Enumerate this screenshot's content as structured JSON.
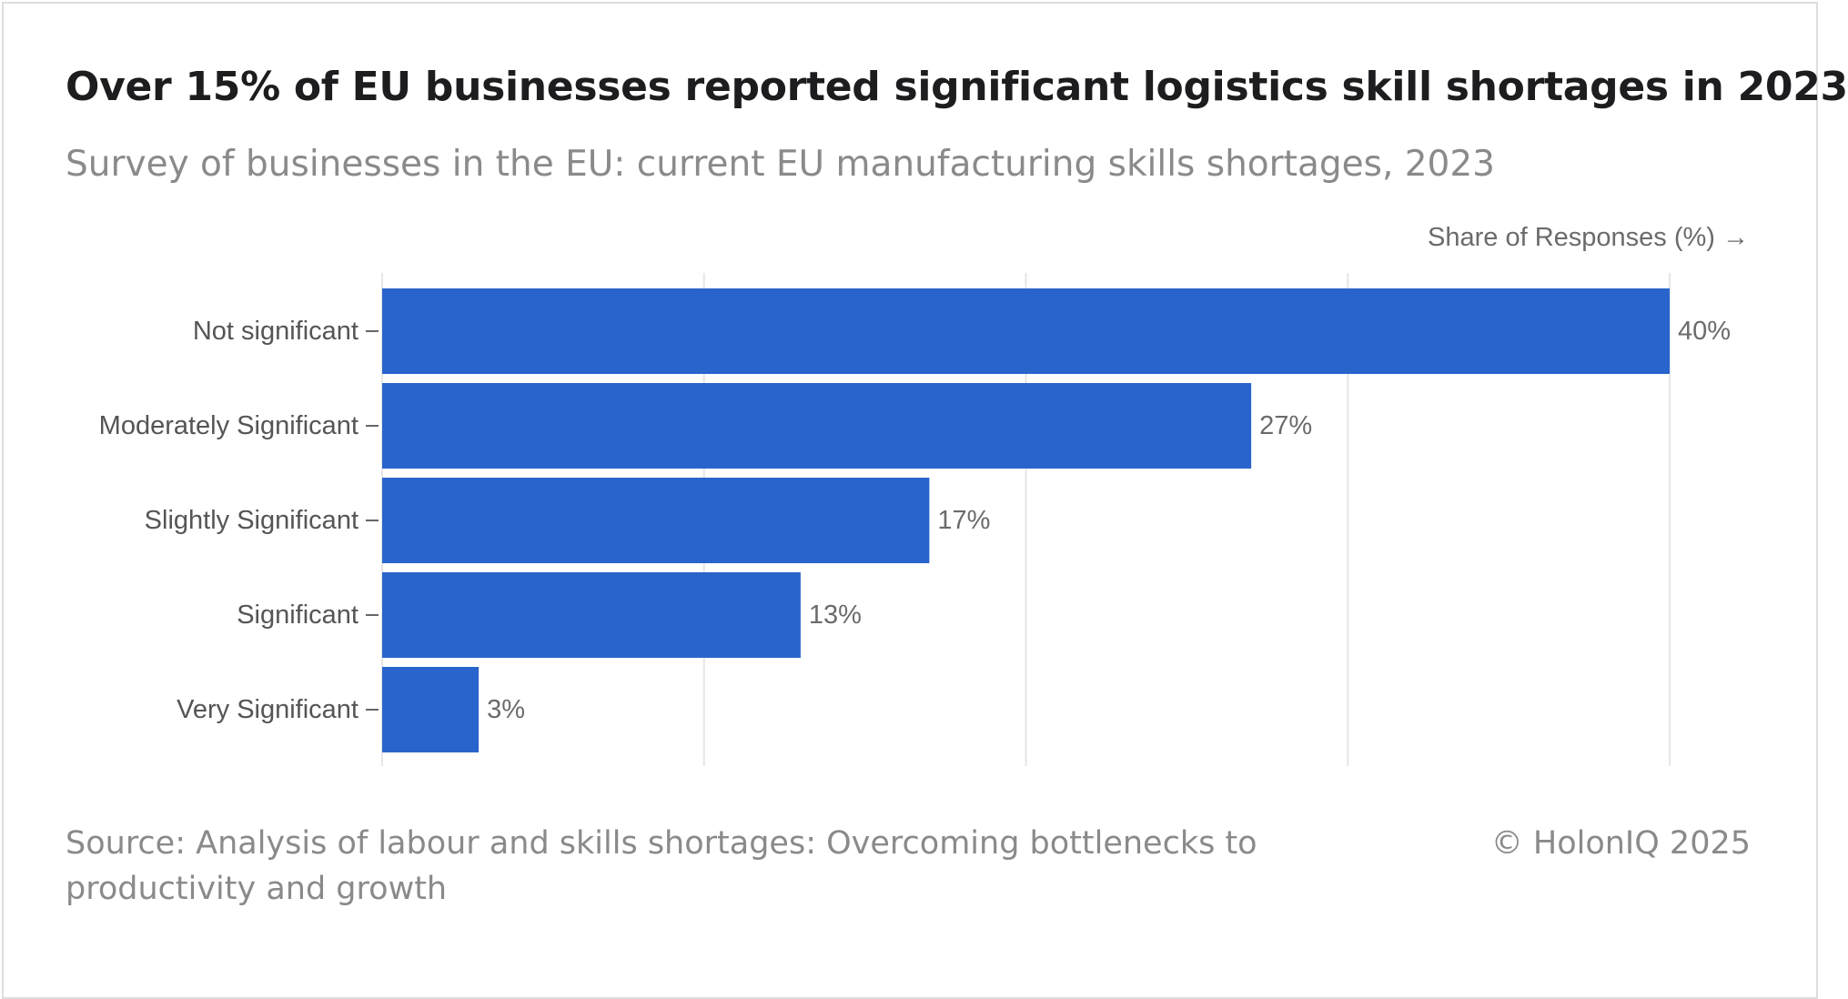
{
  "header": {
    "title": "Over 15% of EU businesses reported significant logistics skill shortages in 2023",
    "subtitle": "Survey of businesses in the EU: current EU manufacturing skills shortages, 2023"
  },
  "footer": {
    "source": "Source: Analysis of labour and skills shortages: Overcoming bottlenecks to productivity and growth",
    "copyright": "© HolonIQ 2025"
  },
  "colors": {
    "bar": "#2964cc",
    "grid": "#e6e6e6",
    "axis_tick": "#666666"
  },
  "chart_data": {
    "type": "bar",
    "orientation": "horizontal",
    "title": "Over 15% of EU businesses reported significant logistics skill shortages in 2023",
    "subtitle": "Survey of businesses in the EU: current EU manufacturing skills shortages, 2023",
    "xlabel": "Share of Responses (%) →",
    "ylabel": "",
    "categories": [
      "Not significant",
      "Moderately Significant",
      "Slightly Significant",
      "Significant",
      "Very Significant"
    ],
    "values": [
      40,
      27,
      17,
      13,
      3
    ],
    "value_labels": [
      "40%",
      "27%",
      "17%",
      "13%",
      "3%"
    ],
    "xlim": [
      0,
      40
    ],
    "gridlines_at": [
      0,
      10,
      20,
      30,
      40
    ],
    "grid": true,
    "legend": "none"
  }
}
